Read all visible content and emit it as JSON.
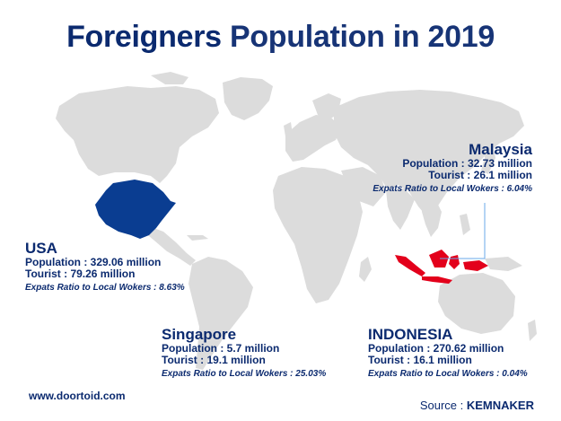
{
  "title": {
    "bold": "Foreigners",
    "rest": "Population in 2019"
  },
  "cards": {
    "malaysia": {
      "name": "Malaysia",
      "population": "Population : 32.73 million",
      "tourist": "Tourist : 26.1 million",
      "ratio": "Expats Ratio to Local Wokers : 6.04%"
    },
    "usa": {
      "name": "USA",
      "population": "Population : 329.06 million",
      "tourist": "Tourist : 79.26 million",
      "ratio": "Expats Ratio to Local Wokers : 8.63%"
    },
    "singapore": {
      "name": "Singapore",
      "population": "Population : 5.7 million",
      "tourist": "Tourist : 19.1 million",
      "ratio": "Expats Ratio to Local Wokers : 25.03%"
    },
    "indonesia": {
      "name": "INDONESIA",
      "population": "Population : 270.62 million",
      "tourist": "Tourist : 16.1 million",
      "ratio": "Expats Ratio to Local Wokers : 0.04%"
    }
  },
  "footer": {
    "website": "www.doortoid.com",
    "source_label": "Source :",
    "source_name": "KEMNAKER"
  },
  "colors": {
    "title": "#0b2a6f",
    "land": "#dddddd",
    "usa_highlight": "#0a3d91",
    "indonesia_highlight": "#e3001b",
    "leader_line": "#6aa8e8"
  }
}
